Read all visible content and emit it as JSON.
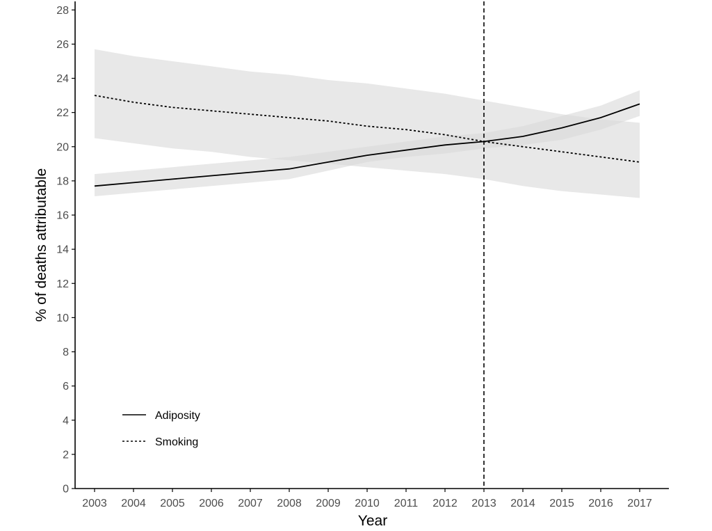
{
  "chart_data": {
    "type": "line",
    "xlabel": "Year",
    "ylabel": "% of deaths attributable",
    "x": [
      2003,
      2004,
      2005,
      2006,
      2007,
      2008,
      2009,
      2010,
      2011,
      2012,
      2013,
      2014,
      2015,
      2016,
      2017
    ],
    "xlim": [
      2002.5,
      2017.75
    ],
    "ylim": [
      0,
      28.5
    ],
    "yticks": [
      0,
      2,
      4,
      6,
      8,
      10,
      12,
      14,
      16,
      18,
      20,
      22,
      24,
      26,
      28
    ],
    "grid": false,
    "legend_position": "bottom-left",
    "reference_line": {
      "x": 2013,
      "style": "dashed"
    },
    "series": [
      {
        "name": "Adiposity",
        "line_style": "solid",
        "values": [
          17.7,
          17.9,
          18.1,
          18.3,
          18.5,
          18.7,
          19.1,
          19.5,
          19.8,
          20.1,
          20.3,
          20.6,
          21.1,
          21.7,
          22.5
        ],
        "ci_lower": [
          17.1,
          17.3,
          17.5,
          17.7,
          17.9,
          18.1,
          18.6,
          19.1,
          19.4,
          19.6,
          19.9,
          20.1,
          20.4,
          21.0,
          21.8
        ],
        "ci_upper": [
          18.4,
          18.6,
          18.8,
          19.0,
          19.2,
          19.4,
          19.7,
          20.0,
          20.3,
          20.6,
          20.8,
          21.2,
          21.8,
          22.4,
          23.3
        ]
      },
      {
        "name": "Smoking",
        "line_style": "dotted",
        "values": [
          23.0,
          22.6,
          22.3,
          22.1,
          21.9,
          21.7,
          21.5,
          21.2,
          21.0,
          20.7,
          20.3,
          20.0,
          19.7,
          19.4,
          19.1
        ],
        "ci_lower": [
          20.5,
          20.2,
          19.9,
          19.7,
          19.4,
          19.2,
          19.0,
          18.8,
          18.6,
          18.4,
          18.1,
          17.7,
          17.4,
          17.2,
          17.0
        ],
        "ci_upper": [
          25.7,
          25.3,
          25.0,
          24.7,
          24.4,
          24.2,
          23.9,
          23.7,
          23.4,
          23.1,
          22.7,
          22.3,
          21.9,
          21.6,
          21.4
        ]
      }
    ],
    "colors": {
      "line": "#000000",
      "ribbon": "#d9d9d9",
      "axis": "#000000",
      "tick_text": "#4d4d4d"
    }
  }
}
